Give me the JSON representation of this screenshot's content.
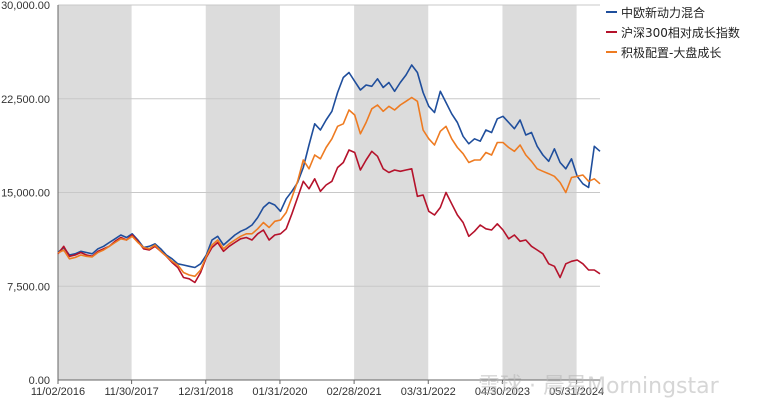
{
  "chart_data": {
    "type": "line",
    "y_ticks": [
      "30,000.00",
      "22,500.00",
      "15,000.00",
      "7,500.00",
      "0.00"
    ],
    "y_tick_values": [
      30000,
      22500,
      15000,
      7500,
      0
    ],
    "ylim": [
      0,
      30000
    ],
    "x_ticks": [
      "11/02/2016",
      "11/30/2017",
      "12/31/2018",
      "01/31/2020",
      "02/28/2021",
      "03/31/2022",
      "04/30/2023",
      "05/31/2024"
    ],
    "x_tick_months": [
      0,
      12.9,
      25.9,
      38.9,
      51.9,
      64.9,
      77.9,
      90.9
    ],
    "x_range_months": [
      0,
      95
    ],
    "shaded_bands_months": [
      [
        0,
        12.9
      ],
      [
        25.9,
        38.9
      ],
      [
        51.9,
        64.9
      ],
      [
        77.9,
        90.9
      ]
    ],
    "colors": {
      "band": "#dcdcdc",
      "grid": "#c8c8c8",
      "axis": "#666666"
    },
    "legend_position": "top-right",
    "series": [
      {
        "name": "中欧新动力混合",
        "color": "#1f4e9c",
        "x": [
          0,
          1,
          2,
          3,
          4,
          5,
          6,
          7,
          8,
          9,
          10,
          11,
          12,
          13,
          14,
          15,
          16,
          17,
          18,
          19,
          20,
          21,
          22,
          23,
          24,
          25,
          26,
          27,
          28,
          29,
          30,
          31,
          32,
          33,
          34,
          35,
          36,
          37,
          38,
          39,
          40,
          41,
          42,
          43,
          44,
          45,
          46,
          47,
          48,
          49,
          50,
          51,
          52,
          53,
          54,
          55,
          56,
          57,
          58,
          59,
          60,
          61,
          62,
          63,
          64,
          65,
          66,
          67,
          68,
          69,
          70,
          71,
          72,
          73,
          74,
          75,
          76,
          77,
          78,
          79,
          80,
          81,
          82,
          83,
          84,
          85,
          86,
          87,
          88,
          89,
          90,
          91,
          92,
          93,
          94,
          95
        ],
        "values": [
          10200,
          10600,
          10000,
          10100,
          10300,
          10200,
          10100,
          10500,
          10700,
          11000,
          11300,
          11600,
          11400,
          11700,
          11200,
          10600,
          10700,
          10900,
          10500,
          10000,
          9700,
          9300,
          9200,
          9100,
          9000,
          9300,
          10000,
          11200,
          11500,
          10800,
          11200,
          11600,
          11900,
          12100,
          12400,
          13000,
          13800,
          14200,
          14000,
          13500,
          14500,
          15100,
          15800,
          17000,
          18800,
          20500,
          20000,
          20800,
          21500,
          23000,
          24200,
          24600,
          23900,
          23200,
          23600,
          23500,
          24100,
          23400,
          23800,
          23100,
          23800,
          24400,
          25200,
          24600,
          23000,
          21900,
          21400,
          23100,
          22200,
          21300,
          20600,
          19500,
          18900,
          19300,
          19100,
          20000,
          19800,
          20900,
          21100,
          20600,
          20100,
          20800,
          19600,
          19800,
          18700,
          18000,
          17500,
          18500,
          17400,
          16900,
          17700,
          16300,
          15700,
          15400,
          18700,
          18300
        ]
      },
      {
        "name": "沪深300相对成长指数",
        "color": "#b5122b",
        "x": [
          0,
          1,
          2,
          3,
          4,
          5,
          6,
          7,
          8,
          9,
          10,
          11,
          12,
          13,
          14,
          15,
          16,
          17,
          18,
          19,
          20,
          21,
          22,
          23,
          24,
          25,
          26,
          27,
          28,
          29,
          30,
          31,
          32,
          33,
          34,
          35,
          36,
          37,
          38,
          39,
          40,
          41,
          42,
          43,
          44,
          45,
          46,
          47,
          48,
          49,
          50,
          51,
          52,
          53,
          54,
          55,
          56,
          57,
          58,
          59,
          60,
          61,
          62,
          63,
          64,
          65,
          66,
          67,
          68,
          69,
          70,
          71,
          72,
          73,
          74,
          75,
          76,
          77,
          78,
          79,
          80,
          81,
          82,
          83,
          84,
          85,
          86,
          87,
          88,
          89,
          90,
          91,
          92,
          93,
          94,
          95
        ],
        "values": [
          10100,
          10700,
          9900,
          10000,
          10200,
          10000,
          9900,
          10300,
          10500,
          10700,
          11100,
          11400,
          11200,
          11600,
          11100,
          10500,
          10400,
          10700,
          10300,
          9900,
          9400,
          9000,
          8200,
          8100,
          7800,
          8600,
          9800,
          10600,
          11000,
          10300,
          10700,
          11000,
          11300,
          11400,
          11200,
          11700,
          12000,
          11200,
          11600,
          11700,
          12100,
          13300,
          14600,
          15900,
          15300,
          16100,
          15100,
          15600,
          15900,
          17000,
          17400,
          18400,
          18200,
          16800,
          17600,
          18300,
          17900,
          16900,
          16600,
          16800,
          16700,
          16800,
          16900,
          14700,
          14800,
          13500,
          13200,
          13800,
          15000,
          14100,
          13200,
          12600,
          11500,
          11900,
          12400,
          12100,
          12000,
          12500,
          12000,
          11300,
          11600,
          11100,
          11200,
          10700,
          10400,
          10100,
          9300,
          9100,
          8200,
          9300,
          9500,
          9600,
          9300,
          8800,
          8800,
          8500
        ]
      },
      {
        "name": "积极配置-大盘成长",
        "color": "#ee7b21",
        "x": [
          0,
          1,
          2,
          3,
          4,
          5,
          6,
          7,
          8,
          9,
          10,
          11,
          12,
          13,
          14,
          15,
          16,
          17,
          18,
          19,
          20,
          21,
          22,
          23,
          24,
          25,
          26,
          27,
          28,
          29,
          30,
          31,
          32,
          33,
          34,
          35,
          36,
          37,
          38,
          39,
          40,
          41,
          42,
          43,
          44,
          45,
          46,
          47,
          48,
          49,
          50,
          51,
          52,
          53,
          54,
          55,
          56,
          57,
          58,
          59,
          60,
          61,
          62,
          63,
          64,
          65,
          66,
          67,
          68,
          69,
          70,
          71,
          72,
          73,
          74,
          75,
          76,
          77,
          78,
          79,
          80,
          81,
          82,
          83,
          84,
          85,
          86,
          87,
          88,
          89,
          90,
          91,
          92,
          93,
          94,
          95
        ],
        "values": [
          10150,
          10400,
          9700,
          9800,
          10000,
          9900,
          9850,
          10200,
          10400,
          10700,
          11000,
          11300,
          11200,
          11500,
          11000,
          10600,
          10500,
          10800,
          10300,
          9900,
          9500,
          9200,
          8600,
          8400,
          8300,
          8800,
          9900,
          10800,
          11200,
          10500,
          10900,
          11200,
          11500,
          11700,
          11700,
          12100,
          12600,
          12200,
          12700,
          12800,
          13400,
          14600,
          15900,
          17600,
          16900,
          18000,
          17700,
          18600,
          19300,
          20300,
          20500,
          21600,
          21200,
          19700,
          20600,
          21700,
          22000,
          21500,
          21900,
          21600,
          22000,
          22300,
          22600,
          22300,
          20000,
          19300,
          18800,
          19900,
          20300,
          19300,
          18600,
          18100,
          17400,
          17600,
          17600,
          18200,
          18000,
          19000,
          19000,
          18600,
          18300,
          18800,
          18000,
          17500,
          16900,
          16700,
          16500,
          16300,
          15800,
          15000,
          16200,
          16300,
          16400,
          15900,
          16100,
          15700
        ]
      }
    ]
  },
  "watermark": {
    "text": "雪球 · 晨星Morningstar"
  }
}
